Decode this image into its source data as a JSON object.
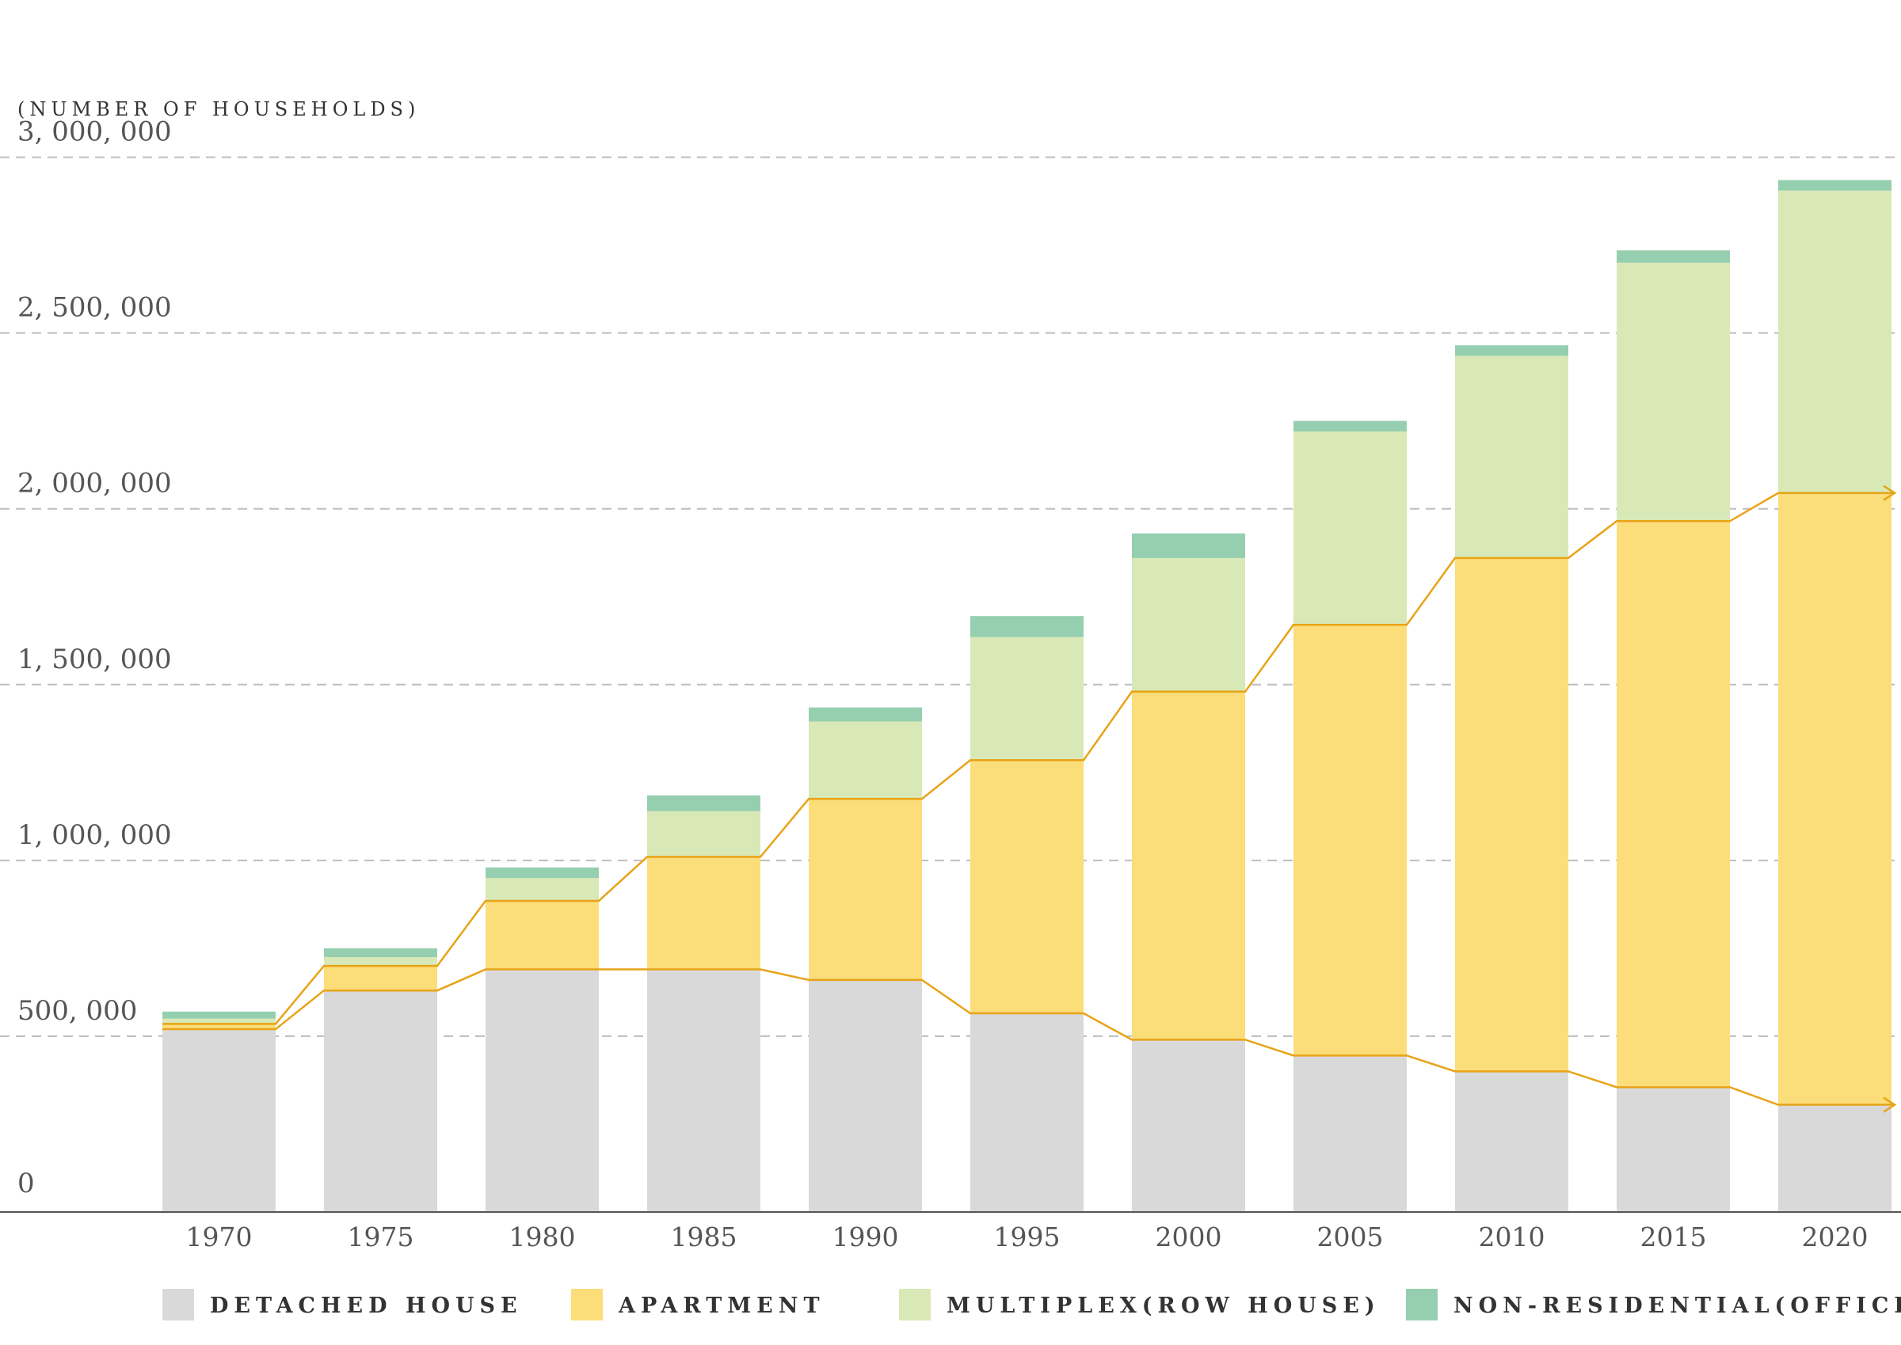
{
  "chart_data": {
    "type": "bar",
    "stacked": true,
    "ylabel": "(NUMBER OF HOUSEHOLDS)",
    "ylim": [
      0,
      3000000
    ],
    "yticks": [
      0,
      500000,
      1000000,
      1500000,
      2000000,
      2500000,
      3000000
    ],
    "ytick_labels": [
      "0",
      "500, 000",
      "1, 000, 000",
      "1, 500, 000",
      "2, 000, 000",
      "2, 500, 000",
      "3, 000, 000"
    ],
    "grid": true,
    "legend_position": "bottom",
    "categories": [
      "1970",
      "1975",
      "1980",
      "1985",
      "1990",
      "1995",
      "2000",
      "2005",
      "2010",
      "2015",
      "2020"
    ],
    "series": [
      {
        "name": "DETACHED HOUSE",
        "color": "#d9d9d9",
        "values": [
          520000,
          630000,
          690000,
          690000,
          660000,
          565000,
          490000,
          445000,
          400000,
          355000,
          305000
        ]
      },
      {
        "name": "APARTMENT",
        "color": "#fbdd7a",
        "values": [
          15000,
          70000,
          195000,
          320000,
          515000,
          720000,
          990000,
          1225000,
          1460000,
          1610000,
          1740000
        ]
      },
      {
        "name": "MULTIPLEX(ROW HOUSE)",
        "color": "#d9e8b7",
        "values": [
          15000,
          25000,
          65000,
          130000,
          220000,
          350000,
          380000,
          550000,
          575000,
          735000,
          860000
        ]
      },
      {
        "name": "NON-RESIDENTIAL(OFFICETEL)",
        "color": "#96cfaf",
        "values": [
          20000,
          25000,
          30000,
          45000,
          40000,
          60000,
          70000,
          30000,
          30000,
          35000,
          30000
        ]
      }
    ],
    "trend_line_color": "#e8a317"
  }
}
